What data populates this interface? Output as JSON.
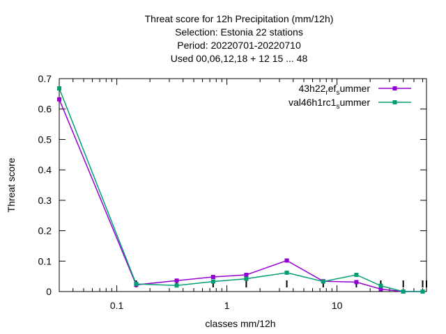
{
  "chart_data": {
    "type": "line",
    "title_lines": [
      "Threat score  for 12h Precipitation (mm/12h)",
      "Selection: Estonia      22 stations",
      "Period: 20220701-20220710",
      "Used  00,06,12,18  + 12 15 ... 48"
    ],
    "xlabel": "classes mm/12h",
    "ylabel": "Threat score",
    "xscale": "log",
    "xlim": [
      0.03,
      65
    ],
    "ylim": [
      0,
      0.7
    ],
    "yticks": [
      0,
      0.1,
      0.2,
      0.3,
      0.4,
      0.5,
      0.6,
      0.7
    ],
    "ytick_labels": [
      "0",
      "0.1",
      "0.2",
      "0.3",
      "0.4",
      "0.5",
      "0.6",
      "0.7"
    ],
    "xticks": [
      0.1,
      1,
      10
    ],
    "xtick_labels": [
      "0.1",
      "1",
      "10"
    ],
    "legend_position": "top-right",
    "series": [
      {
        "name": "43h22_ref_summer",
        "legend_main": "43h22",
        "legend_sub1": "r",
        "legend_mid": "ef",
        "legend_sub2": "s",
        "legend_tail": "ummer",
        "color": "#9400d3",
        "x": [
          0.03,
          0.15,
          0.35,
          0.75,
          1.5,
          3.5,
          7.5,
          15,
          25,
          40,
          60
        ],
        "y": [
          0.632,
          0.022,
          0.036,
          0.048,
          0.055,
          0.102,
          0.034,
          0.031,
          0.008,
          0.0,
          0.0
        ]
      },
      {
        "name": "val46h1rc1_summer",
        "legend_main": "val46h1rc1",
        "legend_sub1": "s",
        "legend_tail": "ummer",
        "color": "#009e73",
        "x": [
          0.03,
          0.15,
          0.35,
          0.75,
          1.5,
          3.5,
          7.5,
          15,
          25,
          40,
          60
        ],
        "y": [
          0.668,
          0.025,
          0.02,
          0.033,
          0.042,
          0.062,
          0.033,
          0.055,
          0.019,
          0.0,
          0.0
        ]
      }
    ]
  }
}
